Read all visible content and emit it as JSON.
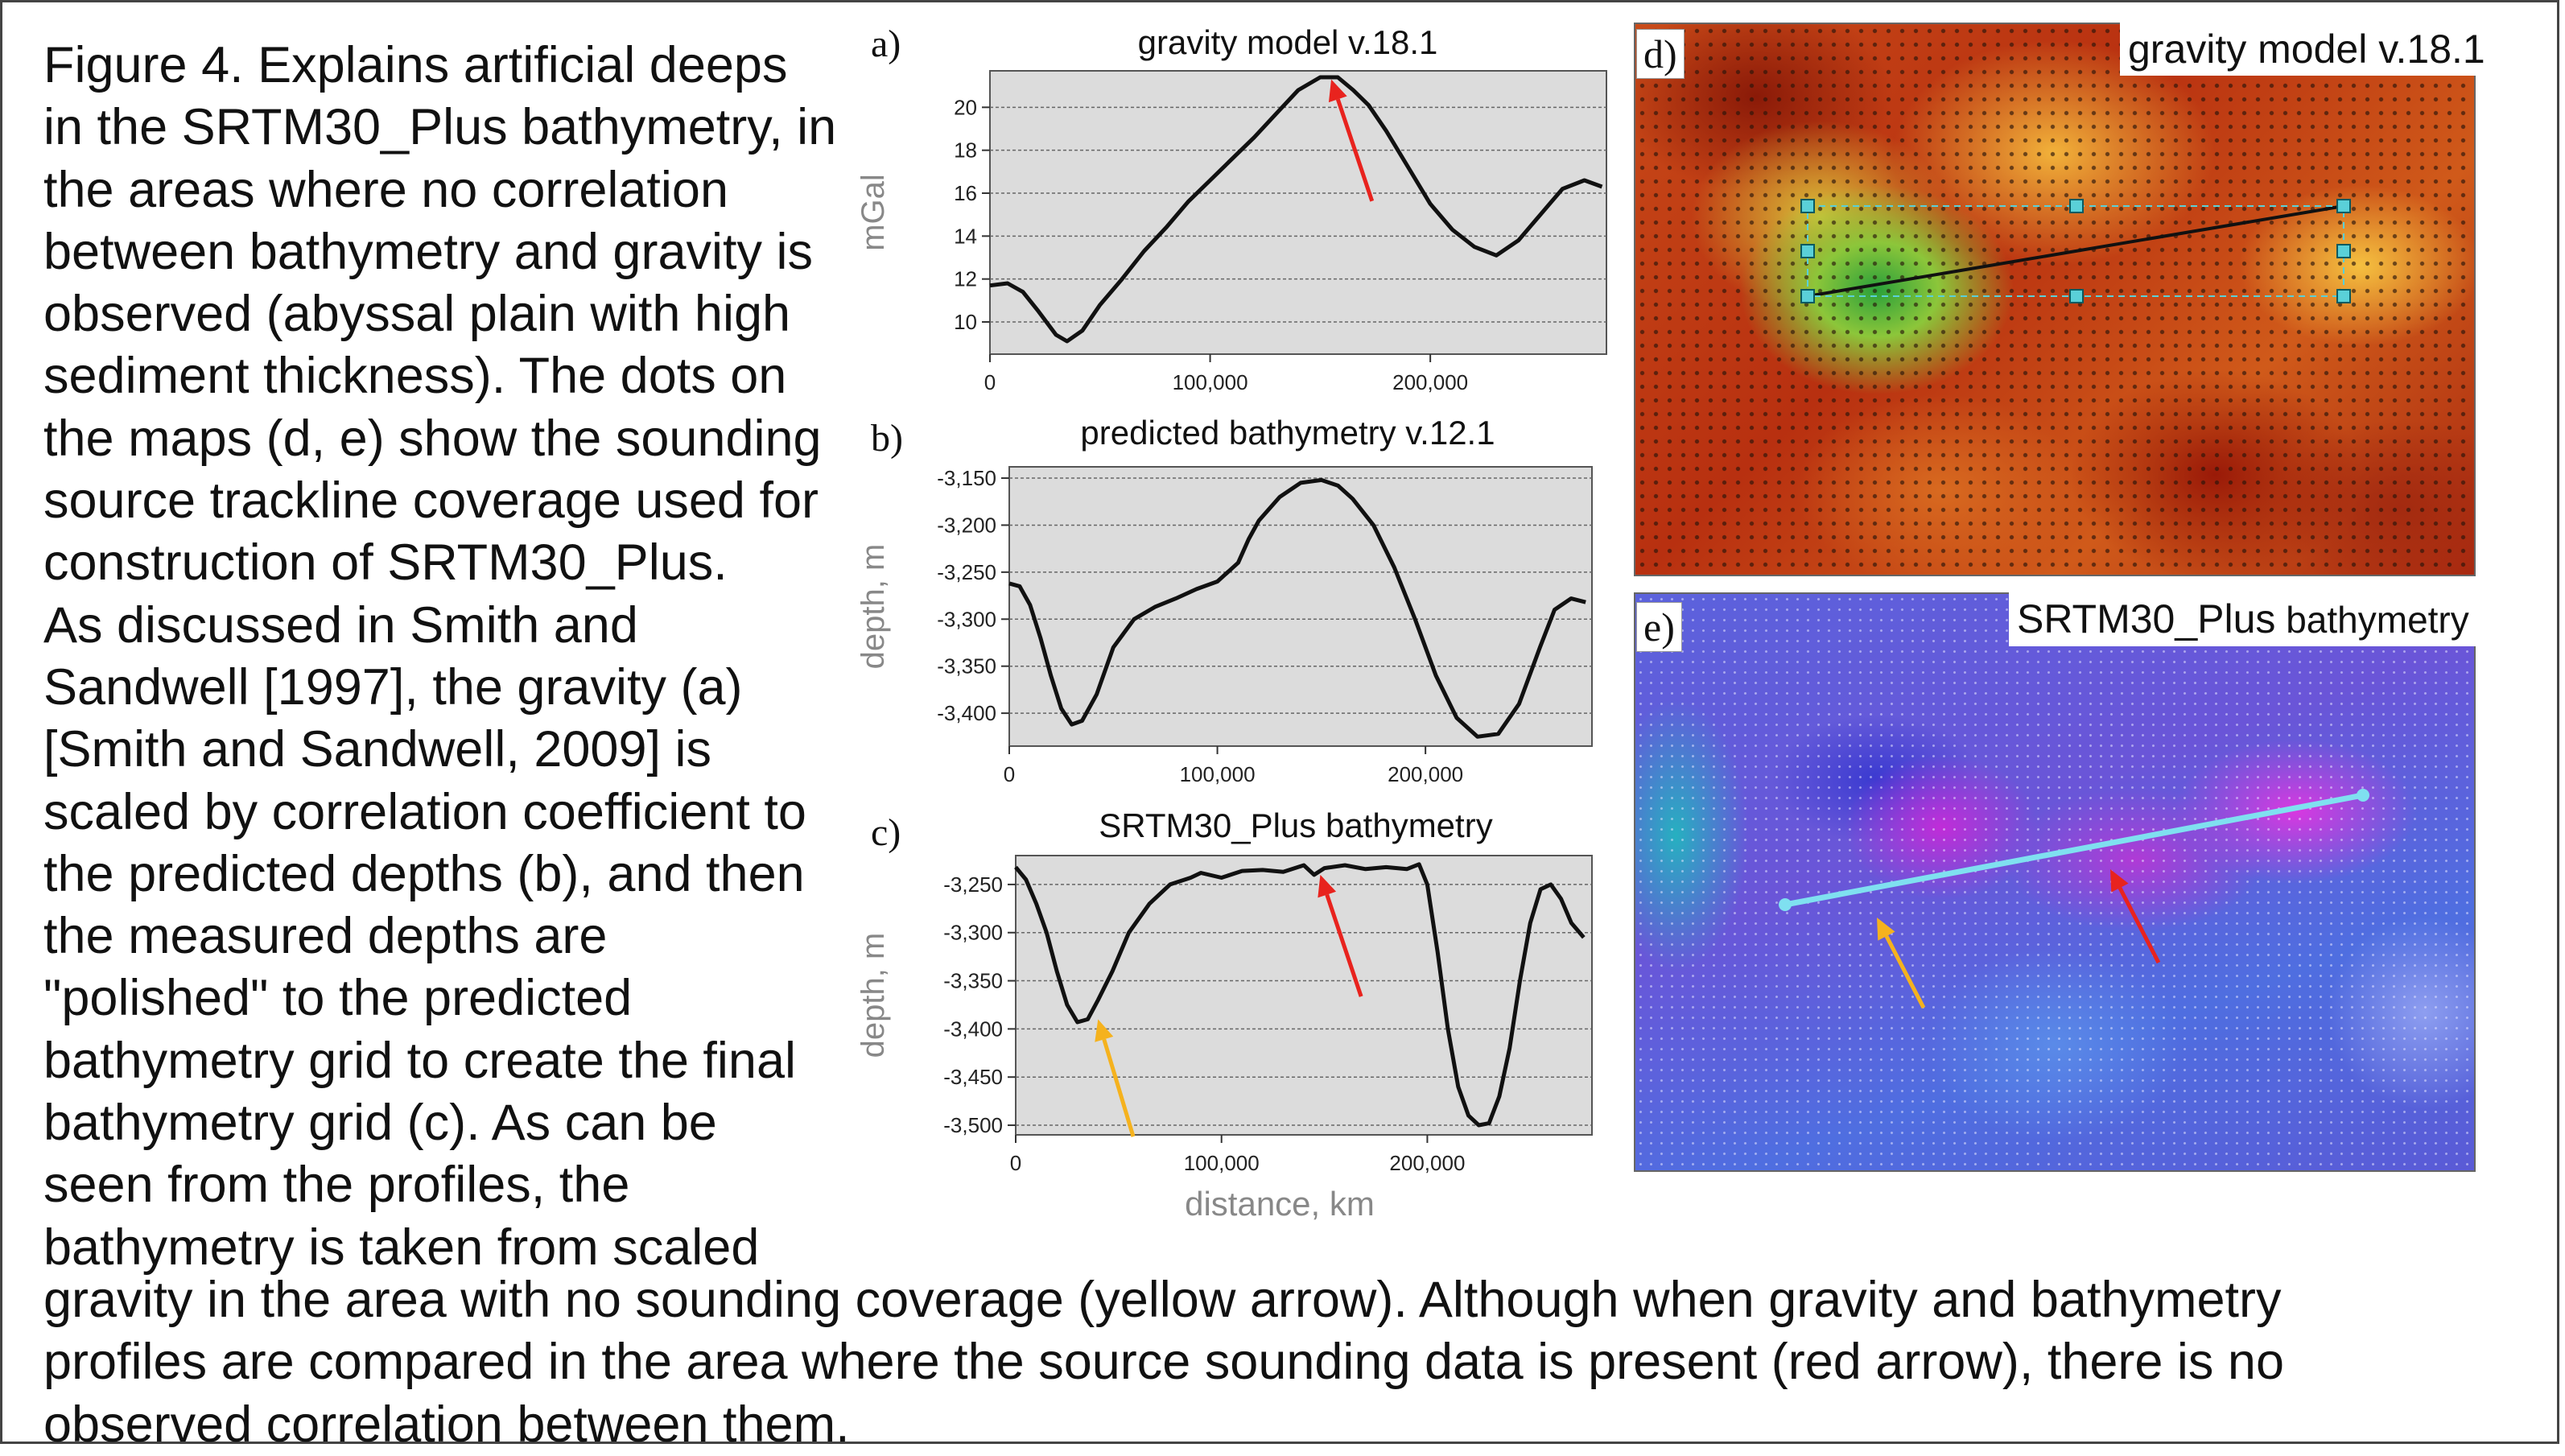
{
  "caption": {
    "lines_left": [
      "Figure 4. Explains artificial deeps",
      "in the SRTM30_Plus bathymetry, in",
      "the areas where no correlation",
      "between bathymetry and gravity is",
      "observed (abyssal plain with high",
      "sediment thickness). The dots on",
      "the maps (d, e) show the sounding",
      "source trackline coverage used for",
      "construction of SRTM30_Plus.",
      "As discussed in Smith and",
      "Sandwell [1997], the gravity (a)",
      "[Smith and Sandwell, 2009] is",
      "scaled by correlation coefficient to",
      "the predicted depths (b), and then",
      "the measured depths are",
      "\"polished\" to the predicted",
      "bathymetry grid to create the final",
      "bathymetry grid (c). As can be",
      "seen from the profiles, the",
      "bathymetry is taken from scaled"
    ],
    "lines_bottom": [
      "gravity in the area with no sounding coverage (yellow arrow). Although when gravity and bathymetry",
      "profiles are compared in the area where the source sounding data is present (red arrow), there is no",
      "observed correlation between them."
    ]
  },
  "colors": {
    "plot_bg": "#dcdcdc",
    "profile_line": "#111111",
    "red_arrow": "#e8231e",
    "yellow_arrow": "#f5b21e",
    "track_line_d": "#111111",
    "track_line_e": "#7fe0f0"
  },
  "maps": {
    "d": {
      "letter": "d)",
      "title": "gravity model v.18.1"
    },
    "e": {
      "letter": "e)",
      "title_main": "SRTM30_Plus",
      "title_small": " bathymetry"
    }
  },
  "chart_data": [
    {
      "id": "a",
      "letter": "a)",
      "type": "line",
      "title": "gravity model v.18.1",
      "xlabel": "",
      "ylabel": "mGal",
      "xlim": [
        0,
        280000
      ],
      "ylim": [
        8.5,
        21.7
      ],
      "xticks": [
        0,
        100000,
        200000
      ],
      "xtick_labels": [
        "0",
        "100,000",
        "200,000"
      ],
      "yticks": [
        10,
        12,
        14,
        16,
        18,
        20
      ],
      "ytick_labels": [
        "10",
        "12",
        "14",
        "16",
        "18",
        "20"
      ],
      "x": [
        0,
        8000,
        15000,
        22000,
        30000,
        35000,
        42000,
        50000,
        60000,
        70000,
        80000,
        90000,
        100000,
        110000,
        120000,
        130000,
        140000,
        150000,
        158000,
        165000,
        172000,
        180000,
        190000,
        200000,
        210000,
        220000,
        230000,
        240000,
        250000,
        260000,
        270000,
        278000
      ],
      "y": [
        11.7,
        11.8,
        11.4,
        10.5,
        9.4,
        9.1,
        9.6,
        10.8,
        12,
        13.3,
        14.4,
        15.6,
        16.6,
        17.6,
        18.6,
        19.7,
        20.8,
        21.4,
        21.4,
        20.8,
        20.1,
        18.9,
        17.2,
        15.5,
        14.3,
        13.5,
        13.1,
        13.8,
        15,
        16.2,
        16.6,
        16.3
      ],
      "arrows": [
        {
          "color": "red",
          "x": 155000,
          "y": 21.3
        }
      ]
    },
    {
      "id": "b",
      "letter": "b)",
      "type": "line",
      "title": "predicted bathymetry v.12.1",
      "xlabel": "",
      "ylabel": "depth, m",
      "xlim": [
        0,
        280000
      ],
      "ylim": [
        -3435,
        -3138
      ],
      "xticks": [
        0,
        100000,
        200000
      ],
      "xtick_labels": [
        "0",
        "100,000",
        "200,000"
      ],
      "yticks": [
        -3150,
        -3200,
        -3250,
        -3300,
        -3350,
        -3400
      ],
      "ytick_labels": [
        "-3,150",
        "-3,200",
        "-3,250",
        "-3,300",
        "-3,350",
        "-3,400"
      ],
      "x": [
        0,
        5000,
        10000,
        15000,
        20000,
        25000,
        30000,
        35000,
        42000,
        50000,
        60000,
        70000,
        80000,
        90000,
        100000,
        110000,
        115000,
        120000,
        130000,
        140000,
        150000,
        158000,
        165000,
        175000,
        185000,
        195000,
        205000,
        215000,
        225000,
        235000,
        245000,
        255000,
        262000,
        270000,
        277000
      ],
      "y": [
        -3262,
        -3265,
        -3285,
        -3320,
        -3360,
        -3395,
        -3412,
        -3408,
        -3380,
        -3330,
        -3300,
        -3287,
        -3278,
        -3268,
        -3260,
        -3240,
        -3215,
        -3195,
        -3170,
        -3155,
        -3152,
        -3158,
        -3172,
        -3200,
        -3245,
        -3300,
        -3360,
        -3405,
        -3425,
        -3422,
        -3390,
        -3330,
        -3290,
        -3278,
        -3282
      ]
    },
    {
      "id": "c",
      "letter": "c)",
      "type": "line",
      "title": "SRTM30_Plus bathymetry",
      "xlabel": "distance, km",
      "ylabel": "depth, m",
      "xlim": [
        0,
        280000
      ],
      "ylim": [
        -3510,
        -3220
      ],
      "xticks": [
        0,
        100000,
        200000
      ],
      "xtick_labels": [
        "0",
        "100,000",
        "200,000"
      ],
      "yticks": [
        -3250,
        -3300,
        -3350,
        -3400,
        -3450,
        -3500
      ],
      "ytick_labels": [
        "-3,250",
        "-3,300",
        "-3,350",
        "-3,400",
        "-3,450",
        "-3,500"
      ],
      "x": [
        0,
        5000,
        10000,
        15000,
        20000,
        25000,
        30000,
        35000,
        40000,
        47000,
        55000,
        65000,
        75000,
        85000,
        90000,
        100000,
        110000,
        120000,
        130000,
        140000,
        145000,
        150000,
        160000,
        170000,
        180000,
        190000,
        196000,
        200000,
        205000,
        210000,
        215000,
        220000,
        225000,
        230000,
        235000,
        240000,
        245000,
        250000,
        255000,
        260000,
        265000,
        270000,
        276000
      ],
      "y": [
        -3232,
        -3245,
        -3270,
        -3300,
        -3340,
        -3375,
        -3393,
        -3390,
        -3370,
        -3340,
        -3300,
        -3270,
        -3250,
        -3243,
        -3238,
        -3243,
        -3236,
        -3235,
        -3237,
        -3230,
        -3240,
        -3233,
        -3230,
        -3234,
        -3232,
        -3234,
        -3229,
        -3250,
        -3320,
        -3400,
        -3460,
        -3490,
        -3500,
        -3498,
        -3470,
        -3420,
        -3350,
        -3290,
        -3255,
        -3250,
        -3265,
        -3290,
        -3305
      ],
      "arrows": [
        {
          "color": "red",
          "x": 148000,
          "y": -3240
        },
        {
          "color": "yellow",
          "x": 40000,
          "y": -3390
        }
      ]
    }
  ]
}
